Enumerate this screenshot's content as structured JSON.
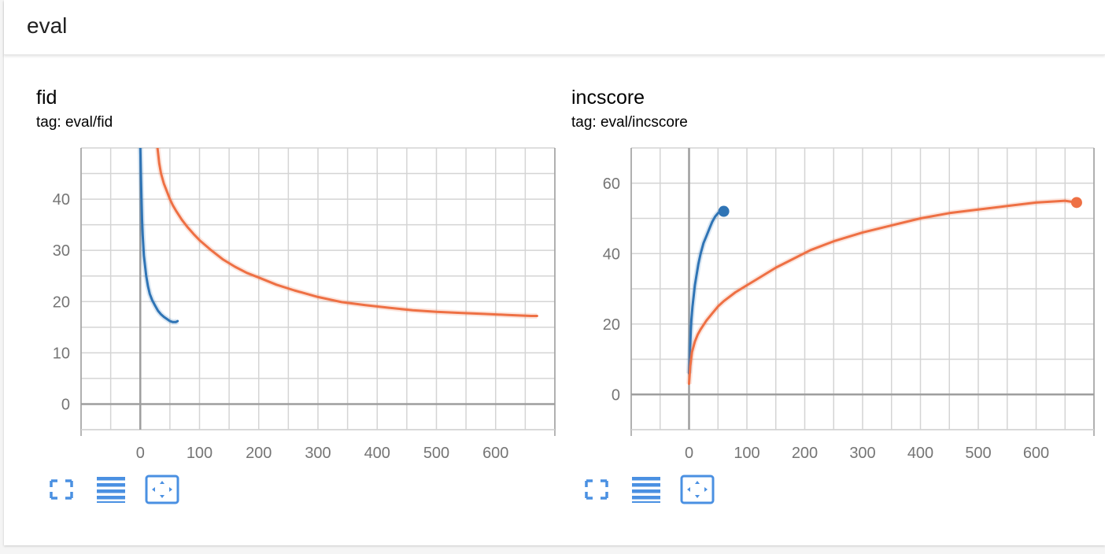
{
  "pane": {
    "title": "eval"
  },
  "colors": {
    "blue": "#2f74b5",
    "orange": "#ee7044",
    "grid": "#d4d4d4",
    "axis": "#9e9e9e",
    "icon": "#4a90e2"
  },
  "icons": [
    "fit-domain-icon",
    "log-scale-icon",
    "toggle-expand-icon"
  ],
  "charts": [
    {
      "title": "fid",
      "tag": "tag: eval/fid",
      "chart_data": {
        "type": "line",
        "title": "fid",
        "xlabel": "",
        "ylabel": "",
        "xlim": [
          -100,
          700
        ],
        "ylim": [
          -5,
          50
        ],
        "xticks": [
          0,
          100,
          200,
          300,
          400,
          500,
          600
        ],
        "yticks": [
          0,
          10,
          20,
          30,
          40
        ],
        "grid": true,
        "series": [
          {
            "color": "#2f74b5",
            "end_marker": false,
            "x": [
              0,
              1,
              2,
              3,
              4,
              6,
              8,
              10,
              13,
              16,
              20,
              25,
              30,
              35,
              40,
              45,
              50,
              55,
              60,
              63
            ],
            "y": [
              50,
              45,
              40,
              36,
              33,
              29,
              27,
              25,
              23,
              21.5,
              20.3,
              19.2,
              18.2,
              17.5,
              17,
              16.6,
              16.2,
              16,
              16,
              16.2
            ]
          },
          {
            "color": "#ee7044",
            "end_marker": false,
            "x": [
              29,
              32,
              35,
              40,
              45,
              50,
              55,
              60,
              70,
              80,
              90,
              100,
              120,
              140,
              160,
              180,
              200,
              230,
              260,
              300,
              340,
              380,
              420,
              460,
              500,
              540,
              580,
              620,
              660,
              670
            ],
            "y": [
              50,
              47,
              45,
              43,
              41.5,
              40,
              38.8,
              37.8,
              36,
              34.5,
              33.2,
              32,
              30,
              28.2,
              26.8,
              25.6,
              24.7,
              23.3,
              22.2,
              20.9,
              19.9,
              19.3,
              18.8,
              18.3,
              18,
              17.8,
              17.6,
              17.4,
              17.2,
              17.2
            ]
          }
        ]
      }
    },
    {
      "title": "incscore",
      "tag": "tag: eval/incscore",
      "chart_data": {
        "type": "line",
        "title": "incscore",
        "xlabel": "",
        "ylabel": "",
        "xlim": [
          -100,
          700
        ],
        "ylim": [
          -10,
          70
        ],
        "xticks": [
          0,
          100,
          200,
          300,
          400,
          500,
          600
        ],
        "yticks": [
          0,
          20,
          40,
          60
        ],
        "grid": true,
        "series": [
          {
            "color": "#2f74b5",
            "end_marker": true,
            "x": [
              0,
              1,
              2,
              3,
              4,
              6,
              8,
              10,
              13,
              16,
              20,
              25,
              30,
              35,
              40,
              45,
              50,
              55,
              60
            ],
            "y": [
              6,
              10,
              14,
              18,
              21,
              25,
              28,
              31,
              34,
              37,
              40,
              43,
              45,
              47,
              49,
              50.5,
              51.5,
              52,
              52
            ]
          },
          {
            "color": "#ee7044",
            "end_marker": true,
            "x": [
              0,
              2,
              5,
              10,
              15,
              20,
              30,
              40,
              50,
              60,
              80,
              100,
              120,
              150,
              180,
              210,
              250,
              300,
              350,
              400,
              450,
              500,
              550,
              600,
              650,
              670
            ],
            "y": [
              3,
              8,
              12,
              15,
              17,
              18.5,
              21,
              23,
              25,
              26.5,
              29,
              31,
              33,
              36,
              38.5,
              41,
              43.5,
              46,
              48,
              50,
              51.5,
              52.5,
              53.5,
              54.5,
              55,
              54.5
            ]
          }
        ]
      }
    }
  ]
}
